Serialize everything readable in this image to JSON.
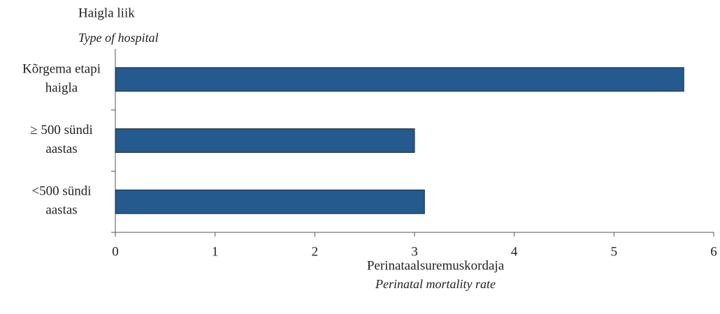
{
  "chart_data": {
    "type": "bar",
    "orientation": "horizontal",
    "y_label": "Haigla liik",
    "y_label_en": "Type of hospital",
    "x_label": "Perinataalsuremuskordaja",
    "x_label_en": "Perinatal mortality rate",
    "categories": [
      [
        "Kõrgema etapi",
        "haigla"
      ],
      [
        "≥ 500 sündi",
        "aastas"
      ],
      [
        "<500 sündi",
        "aastas"
      ]
    ],
    "values": [
      5.7,
      3.0,
      3.1
    ],
    "color": "#245a8e",
    "xlim": [
      0,
      6
    ],
    "xticks": [
      0,
      1,
      2,
      3,
      4,
      5,
      6
    ],
    "grid": false
  }
}
